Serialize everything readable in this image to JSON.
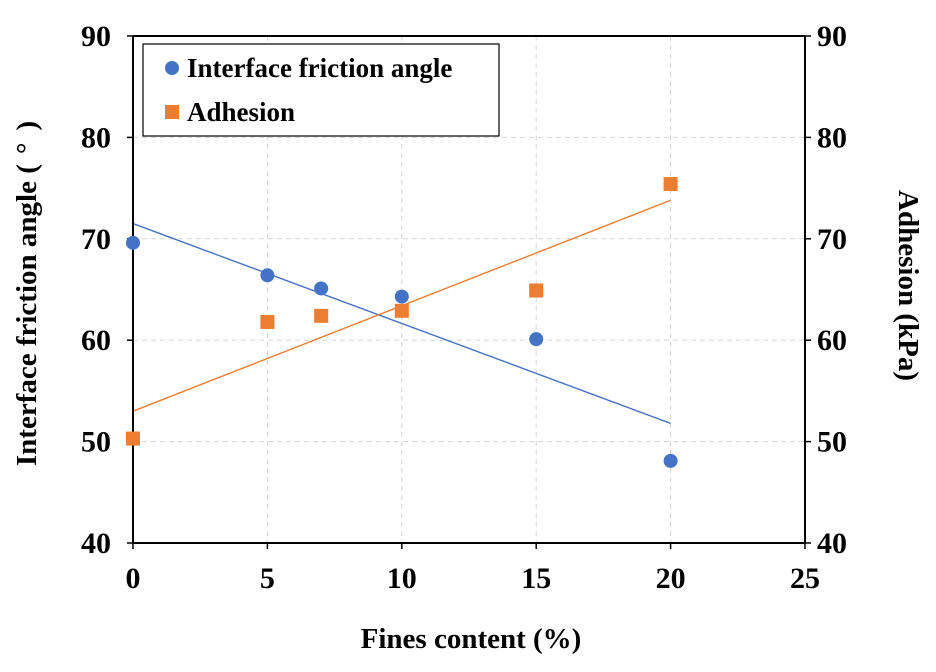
{
  "chart_data": {
    "type": "scatter",
    "title": "",
    "xlabel": "Fines content (%)",
    "ylabel_left": "Interface friction angle (°)",
    "ylabel_left_parts": {
      "prefix": "Interface friction angle (",
      "symbol": "°",
      "suffix": ")"
    },
    "ylabel_right": "Adhesion (kPa)",
    "xlim": [
      0,
      25
    ],
    "ylim_left": [
      40,
      90
    ],
    "ylim_right": [
      40,
      90
    ],
    "x_ticks": [
      0,
      5,
      10,
      15,
      20,
      25
    ],
    "y_ticks": [
      40,
      50,
      60,
      70,
      80,
      90
    ],
    "grid": true,
    "legend_position": "top-left",
    "series": [
      {
        "name": "Interface friction angle",
        "axis": "left",
        "marker": "circle",
        "color": "#4472C4",
        "x": [
          0,
          5,
          7,
          10,
          15,
          20
        ],
        "values": [
          69.6,
          66.4,
          65.1,
          64.3,
          60.1,
          48.1
        ],
        "trendline": {
          "x": [
            0,
            20
          ],
          "y": [
            71.5,
            51.8
          ]
        }
      },
      {
        "name": "Adhesion",
        "axis": "right",
        "marker": "square",
        "color": "#ED7D31",
        "x": [
          0,
          5,
          7,
          10,
          15,
          20
        ],
        "values": [
          50.3,
          61.8,
          62.4,
          62.9,
          64.9,
          75.4
        ],
        "trendline": {
          "x": [
            0,
            20
          ],
          "y": [
            53.0,
            73.8
          ]
        }
      }
    ]
  }
}
